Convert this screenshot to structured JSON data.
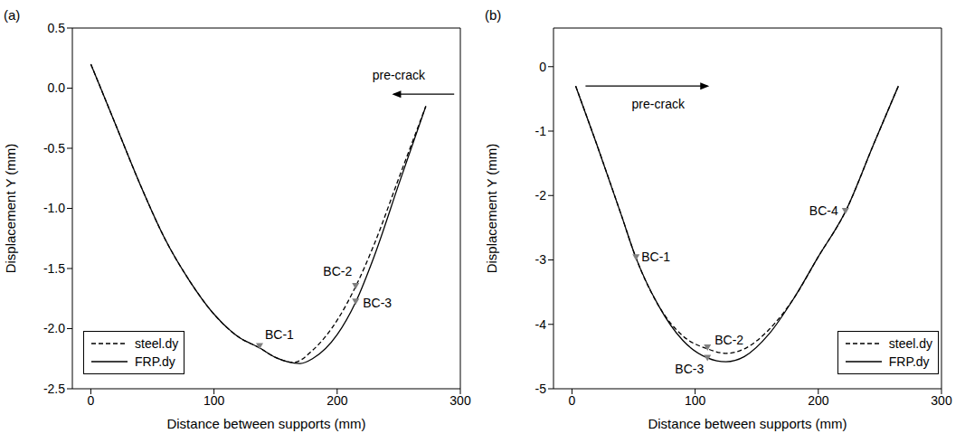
{
  "chart_data": [
    {
      "type": "line",
      "panel": "(a)",
      "x_label": "Distance between supports (mm)",
      "y_label": "Displacement Y (mm)",
      "xlim": [
        -15,
        300
      ],
      "xticks": [
        0,
        100,
        200,
        300
      ],
      "ylim": [
        -2.5,
        0.5
      ],
      "yticks": [
        0.5,
        {
          "value": 0,
          "label": "0.0"
        },
        -0.5,
        {
          "value": -1,
          "label": "-1.0"
        },
        -1.5,
        {
          "value": -2,
          "label": "-2.0"
        },
        -2.5
      ],
      "legend": "lower left",
      "series": [
        {
          "name": "steel.dy",
          "color": "#000000",
          "line_style": "dashed",
          "x": [
            0,
            20,
            40,
            60,
            80,
            100,
            120,
            137,
            150,
            165,
            180,
            200,
            215,
            230,
            250,
            272
          ],
          "values": [
            0.2,
            -0.3,
            -0.8,
            -1.25,
            -1.6,
            -1.88,
            -2.07,
            -2.16,
            -2.24,
            -2.28,
            -2.18,
            -1.93,
            -1.65,
            -1.3,
            -0.75,
            -0.15
          ]
        },
        {
          "name": "FRP.dy",
          "color": "#000000",
          "line_style": "solid",
          "x": [
            0,
            20,
            40,
            60,
            80,
            100,
            120,
            137,
            150,
            170,
            180,
            200,
            215,
            230,
            250,
            272
          ],
          "values": [
            0.2,
            -0.3,
            -0.8,
            -1.25,
            -1.6,
            -1.88,
            -2.07,
            -2.16,
            -2.24,
            -2.29,
            -2.25,
            -2.05,
            -1.78,
            -1.4,
            -0.8,
            -0.15
          ]
        }
      ],
      "bc_markers": {
        "color": "#7f7f7f",
        "marker": "triangle-down",
        "points": [
          {
            "label": "BC-1",
            "x": 137,
            "y": -2.15
          },
          {
            "label": "BC-2",
            "x": 215,
            "y": -1.65
          },
          {
            "label": "BC-3",
            "x": 215,
            "y": -1.78
          }
        ]
      },
      "annotations": [
        {
          "text": "pre-crack",
          "x": 250,
          "y": 0.1,
          "arrow": {
            "x1": 295,
            "x2": 246,
            "y": -0.05
          }
        }
      ]
    },
    {
      "type": "line",
      "panel": "(b)",
      "x_label": "Distance between supports (mm)",
      "y_label": "Displacement Y (mm)",
      "xlim": [
        -15,
        300
      ],
      "xticks": [
        0,
        100,
        200,
        300
      ],
      "ylim": [
        -5,
        0.6
      ],
      "yticks": [
        0,
        -1,
        -2,
        -3,
        -4,
        -5
      ],
      "legend": "lower right",
      "series": [
        {
          "name": "steel.dy",
          "color": "#000000",
          "line_style": "dashed",
          "x": [
            3,
            20,
            40,
            52,
            70,
            90,
            110,
            125,
            140,
            160,
            180,
            200,
            222,
            245,
            265
          ],
          "values": [
            -0.3,
            -1.2,
            -2.3,
            -2.97,
            -3.7,
            -4.18,
            -4.38,
            -4.45,
            -4.38,
            -4.08,
            -3.6,
            -2.95,
            -2.25,
            -1.2,
            -0.3
          ]
        },
        {
          "name": "FRP.dy",
          "color": "#000000",
          "line_style": "solid",
          "x": [
            3,
            20,
            40,
            52,
            70,
            90,
            110,
            125,
            140,
            160,
            180,
            200,
            222,
            245,
            265
          ],
          "values": [
            -0.3,
            -1.2,
            -2.3,
            -2.97,
            -3.7,
            -4.25,
            -4.52,
            -4.58,
            -4.5,
            -4.15,
            -3.6,
            -2.95,
            -2.25,
            -1.2,
            -0.3
          ]
        }
      ],
      "bc_markers": {
        "color": "#7f7f7f",
        "marker": "triangle-down",
        "points": [
          {
            "label": "BC-1",
            "x": 52,
            "y": -2.97
          },
          {
            "label": "BC-2",
            "x": 110,
            "y": -4.37
          },
          {
            "label": "BC-3",
            "x": 110,
            "y": -4.53
          },
          {
            "label": "BC-4",
            "x": 222,
            "y": -2.25
          }
        ]
      },
      "annotations": [
        {
          "text": "pre-crack",
          "x": 70,
          "y": -0.6,
          "arrow": {
            "x1": 11,
            "x2": 110,
            "y": -0.3
          }
        }
      ]
    }
  ]
}
